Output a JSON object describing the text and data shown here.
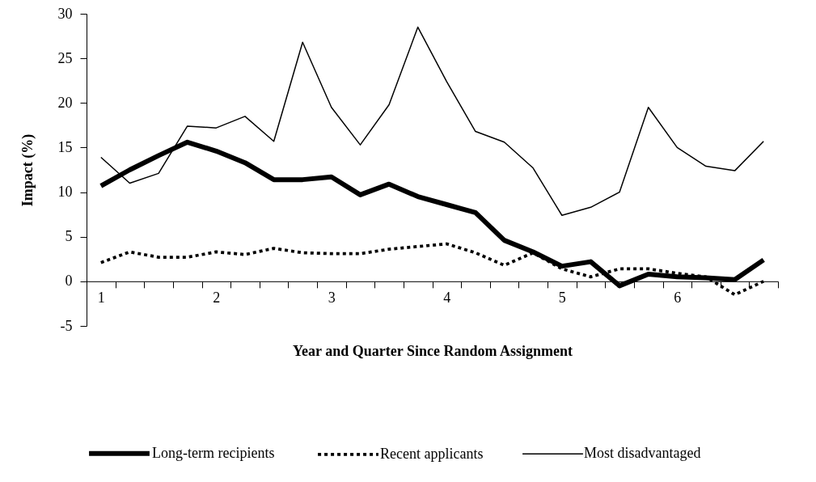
{
  "chart_data": {
    "type": "line",
    "xlabel": "Year and Quarter Since Random Assignment",
    "ylabel": "Impact (%)",
    "categories": [
      "1",
      null,
      null,
      null,
      "2",
      null,
      null,
      null,
      "3",
      null,
      null,
      null,
      "4",
      null,
      null,
      null,
      "5",
      null,
      null,
      null,
      "6",
      null,
      null,
      null
    ],
    "ylim": [
      -5,
      30
    ],
    "yticks": [
      -5,
      0,
      5,
      10,
      15,
      20,
      25,
      30
    ],
    "grid": false,
    "legend": "bottom",
    "marker": "none",
    "series": [
      {
        "name": "Long-term recipients",
        "color": "#000000",
        "line_style": "solid",
        "values": [
          10.7,
          12.5,
          14.1,
          15.6,
          14.6,
          13.3,
          11.4,
          11.4,
          11.7,
          9.7,
          10.9,
          9.5,
          8.6,
          7.7,
          4.6,
          3.3,
          1.7,
          2.2,
          -0.5,
          0.8,
          0.5,
          0.4,
          0.2,
          2.4
        ]
      },
      {
        "name": "Recent applicants",
        "color": "#000000",
        "line_style": "dashed",
        "values": [
          2.1,
          3.3,
          2.7,
          2.7,
          3.3,
          3.0,
          3.7,
          3.2,
          3.1,
          3.1,
          3.6,
          3.9,
          4.2,
          3.2,
          1.8,
          3.2,
          1.4,
          0.5,
          1.4,
          1.4,
          0.9,
          0.5,
          -1.5,
          0.0
        ]
      },
      {
        "name": "Most disadvantaged",
        "color": "#000000",
        "line_style": "solid",
        "values": [
          13.9,
          11.0,
          12.1,
          17.4,
          17.2,
          18.5,
          15.7,
          26.8,
          19.5,
          15.3,
          19.8,
          28.5,
          22.4,
          16.8,
          15.6,
          12.7,
          7.4,
          8.3,
          10.0,
          19.5,
          15.0,
          12.9,
          12.4,
          15.7
        ]
      }
    ]
  }
}
